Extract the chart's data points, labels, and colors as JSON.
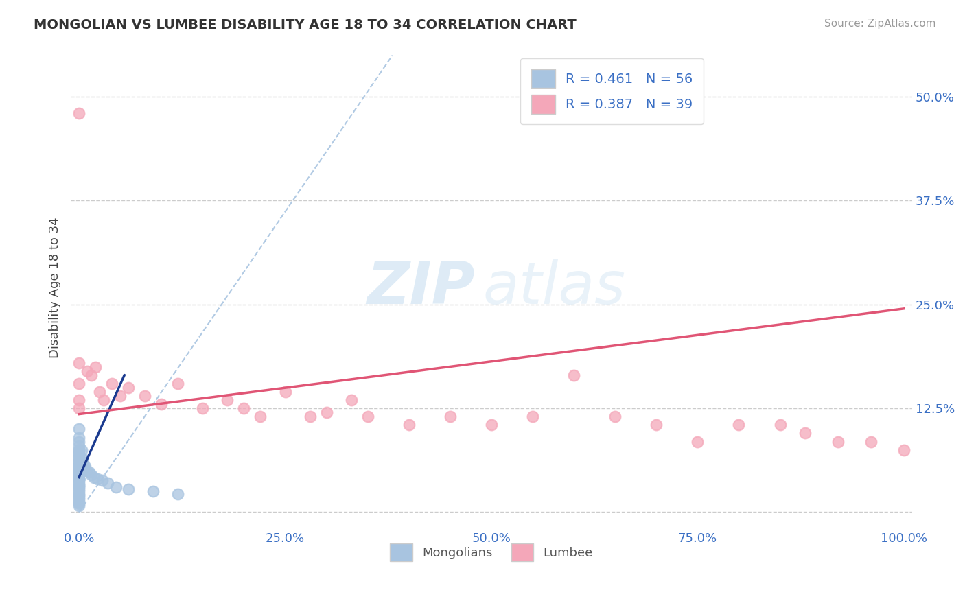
{
  "title": "MONGOLIAN VS LUMBEE DISABILITY AGE 18 TO 34 CORRELATION CHART",
  "source": "Source: ZipAtlas.com",
  "xlabel_mongolians": "Mongolians",
  "xlabel_lumbee": "Lumbee",
  "ylabel": "Disability Age 18 to 34",
  "xlim": [
    -0.01,
    1.01
  ],
  "ylim": [
    -0.02,
    0.56
  ],
  "xticks": [
    0.0,
    0.25,
    0.5,
    0.75,
    1.0
  ],
  "xticklabels": [
    "0.0%",
    "25.0%",
    "50.0%",
    "75.0%",
    "100.0%"
  ],
  "yticks": [
    0.0,
    0.125,
    0.25,
    0.375,
    0.5
  ],
  "yticklabels": [
    "",
    "12.5%",
    "25.0%",
    "37.5%",
    "50.0%"
  ],
  "mongolian_R": 0.461,
  "mongolian_N": 56,
  "lumbee_R": 0.387,
  "lumbee_N": 39,
  "mongolian_color": "#a8c4e0",
  "lumbee_color": "#f4a7b9",
  "mongolian_line_color": "#1a3a8f",
  "lumbee_line_color": "#e05575",
  "dashed_line_color": "#a8c4e0",
  "background_color": "#ffffff",
  "watermark_zip": "ZIP",
  "watermark_atlas": "atlas",
  "mongolian_x": [
    0.0,
    0.0,
    0.0,
    0.0,
    0.0,
    0.0,
    0.0,
    0.0,
    0.0,
    0.0,
    0.0,
    0.0,
    0.0,
    0.0,
    0.0,
    0.0,
    0.0,
    0.0,
    0.0,
    0.0,
    0.0,
    0.0,
    0.0,
    0.0,
    0.0,
    0.0,
    0.0,
    0.0,
    0.0,
    0.0,
    0.0,
    0.0,
    0.0,
    0.0,
    0.0,
    0.0,
    0.0,
    0.0,
    0.0,
    0.0,
    0.003,
    0.004,
    0.005,
    0.006,
    0.007,
    0.009,
    0.012,
    0.015,
    0.018,
    0.022,
    0.028,
    0.035,
    0.045,
    0.06,
    0.09,
    0.12
  ],
  "mongolian_y": [
    0.1,
    0.09,
    0.085,
    0.08,
    0.075,
    0.075,
    0.07,
    0.07,
    0.065,
    0.065,
    0.06,
    0.06,
    0.055,
    0.055,
    0.055,
    0.05,
    0.05,
    0.05,
    0.05,
    0.048,
    0.045,
    0.045,
    0.04,
    0.04,
    0.04,
    0.04,
    0.038,
    0.035,
    0.033,
    0.032,
    0.03,
    0.028,
    0.025,
    0.022,
    0.02,
    0.018,
    0.015,
    0.012,
    0.01,
    0.008,
    0.075,
    0.065,
    0.06,
    0.055,
    0.055,
    0.05,
    0.048,
    0.045,
    0.042,
    0.04,
    0.038,
    0.035,
    0.03,
    0.028,
    0.025,
    0.022
  ],
  "lumbee_x": [
    0.0,
    0.0,
    0.0,
    0.0,
    0.0,
    0.01,
    0.015,
    0.02,
    0.025,
    0.03,
    0.04,
    0.05,
    0.06,
    0.08,
    0.1,
    0.12,
    0.15,
    0.18,
    0.2,
    0.22,
    0.25,
    0.28,
    0.3,
    0.33,
    0.35,
    0.4,
    0.45,
    0.5,
    0.55,
    0.6,
    0.65,
    0.7,
    0.75,
    0.8,
    0.85,
    0.88,
    0.92,
    0.96,
    1.0
  ],
  "lumbee_y": [
    0.48,
    0.18,
    0.155,
    0.135,
    0.125,
    0.17,
    0.165,
    0.175,
    0.145,
    0.135,
    0.155,
    0.14,
    0.15,
    0.14,
    0.13,
    0.155,
    0.125,
    0.135,
    0.125,
    0.115,
    0.145,
    0.115,
    0.12,
    0.135,
    0.115,
    0.105,
    0.115,
    0.105,
    0.115,
    0.165,
    0.115,
    0.105,
    0.085,
    0.105,
    0.105,
    0.095,
    0.085,
    0.085,
    0.075
  ],
  "lumbee_line_start_x": 0.0,
  "lumbee_line_start_y": 0.118,
  "lumbee_line_end_x": 1.0,
  "lumbee_line_end_y": 0.245,
  "mongolian_line_start_x": 0.0,
  "mongolian_line_start_y": 0.042,
  "mongolian_line_end_x": 0.055,
  "mongolian_line_end_y": 0.165,
  "dashed_line_start_x": 0.0,
  "dashed_line_start_y": 0.0,
  "dashed_line_end_x": 0.38,
  "dashed_line_end_y": 0.55
}
